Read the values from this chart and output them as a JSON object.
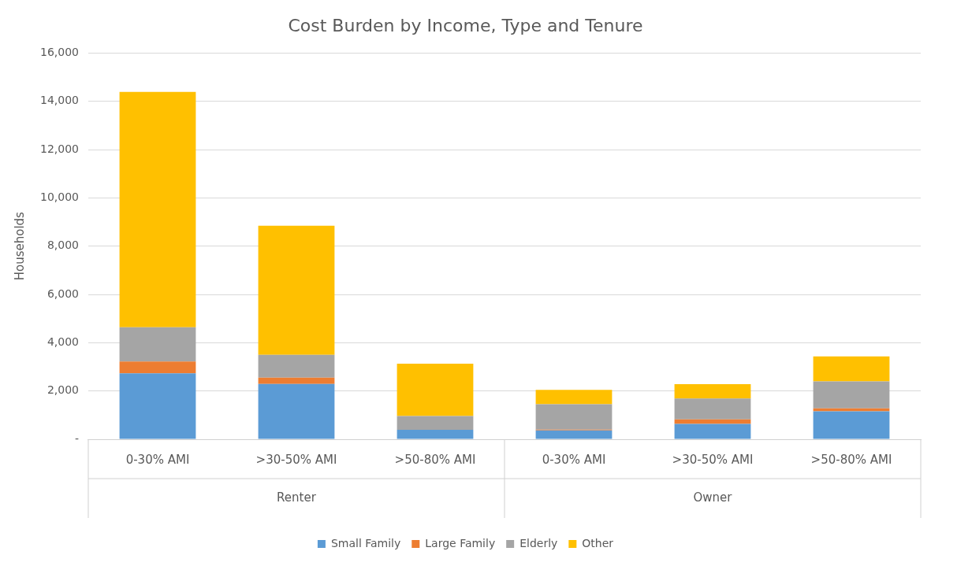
{
  "chart_data": {
    "type": "bar",
    "title": "Cost Burden by Income, Type and Tenure",
    "ylabel": "Households",
    "categories": [
      "0-30% AMI",
      ">30-50% AMI",
      ">50-80% AMI",
      "0-30% AMI",
      ">30-50% AMI",
      ">50-80% AMI"
    ],
    "annotations": [
      "Renter",
      "Owner"
    ],
    "series": [
      {
        "name": "Small Family",
        "color": "#5b9bd5",
        "values": [
          2730,
          2290,
          390,
          370,
          640,
          1160
        ]
      },
      {
        "name": "Large Family",
        "color": "#ed7d31",
        "values": [
          490,
          260,
          0,
          30,
          180,
          120
        ]
      },
      {
        "name": "Elderly",
        "color": "#a5a5a5",
        "values": [
          1420,
          950,
          570,
          1050,
          870,
          1120
        ]
      },
      {
        "name": "Other",
        "color": "#ffc000",
        "values": [
          9750,
          5350,
          2170,
          600,
          590,
          1030
        ]
      }
    ],
    "stacked": true,
    "ylim": [
      0,
      16000
    ],
    "yticks": [
      {
        "value": 0,
        "label": "-"
      },
      {
        "value": 2000,
        "label": "2,000"
      },
      {
        "value": 4000,
        "label": "4,000"
      },
      {
        "value": 6000,
        "label": "6,000"
      },
      {
        "value": 8000,
        "label": "8,000"
      },
      {
        "value": 10000,
        "label": "10,000"
      },
      {
        "value": 12000,
        "label": "12,000"
      },
      {
        "value": 14000,
        "label": "14,000"
      },
      {
        "value": 16000,
        "label": "16,000"
      }
    ],
    "grid": "y",
    "legend": "bottom"
  }
}
